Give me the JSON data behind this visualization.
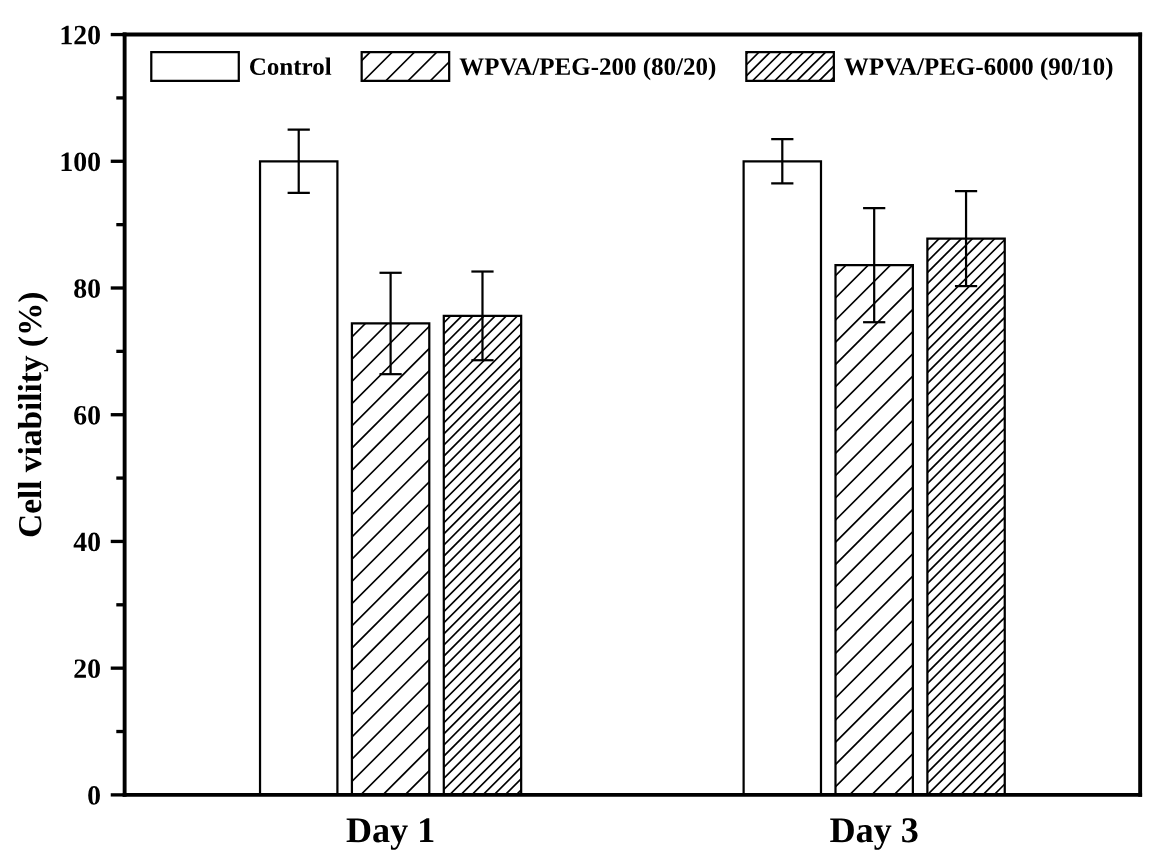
{
  "chart_data": {
    "type": "bar",
    "ylabel": "Cell viability (%)",
    "categories": [
      "Day 1",
      "Day 3"
    ],
    "series": [
      {
        "name": "Control",
        "color": "#ffffff",
        "values": [
          100,
          100
        ],
        "errors": [
          5,
          3.5
        ]
      },
      {
        "name": "WPVA/PEG-200 (80/20)",
        "color": "#000000",
        "values": [
          74.4,
          83.6
        ],
        "errors": [
          8,
          9
        ]
      },
      {
        "name": "WPVA/PEG-6000 (90/10)",
        "color": "#000000",
        "values": [
          75.6,
          87.8
        ],
        "errors": [
          7,
          7.5
        ]
      }
    ],
    "ylim": [
      0,
      120
    ],
    "yticks": [
      0,
      20,
      40,
      60,
      80,
      100,
      120
    ],
    "grid": false,
    "legend": "top"
  }
}
